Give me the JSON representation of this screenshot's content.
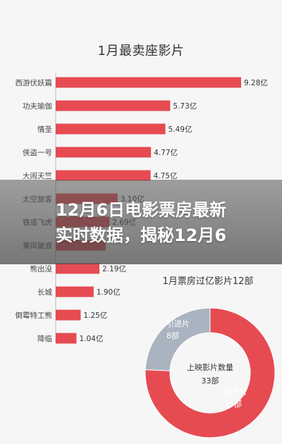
{
  "headline": {
    "line1": "12月6日电影票房最新",
    "line2": "实时数据，揭秘12月6"
  },
  "colors": {
    "bar": "#e64b52",
    "donut_domestic": "#e64b52",
    "donut_imported": "#a9b4c0"
  },
  "chart_data": [
    {
      "type": "bar",
      "title": "1月最卖座影片",
      "categories": [
        "西游伏妖篇",
        "功夫瑜伽",
        "情圣",
        "侠盗一号",
        "大闹天竺",
        "太空旅客",
        "铁道飞虎",
        "乘风破浪",
        "熊出没",
        "长城",
        "倒霉特工熊",
        "降临"
      ],
      "values": [
        9.28,
        5.73,
        5.49,
        4.77,
        4.75,
        3.1,
        2.69,
        2.5,
        2.19,
        1.9,
        1.25,
        1.04
      ],
      "value_labels": [
        "9.28亿",
        "5.73亿",
        "5.49亿",
        "4.77亿",
        "4.75亿",
        "3.10亿",
        "2.69亿",
        "",
        "2.19亿",
        "1.90亿",
        "1.25亿",
        "1.04亿"
      ],
      "unit": "亿",
      "orientation": "horizontal",
      "xlim": [
        0,
        9.28
      ]
    },
    {
      "type": "pie",
      "title": "1月票房过亿影片12部",
      "center_label": "上映影片数量",
      "center_value": "33部",
      "slices": [
        {
          "name": "国产片",
          "value": 25,
          "label": "25部"
        },
        {
          "name": "引进片",
          "value": 8,
          "label": "8部"
        }
      ]
    }
  ]
}
